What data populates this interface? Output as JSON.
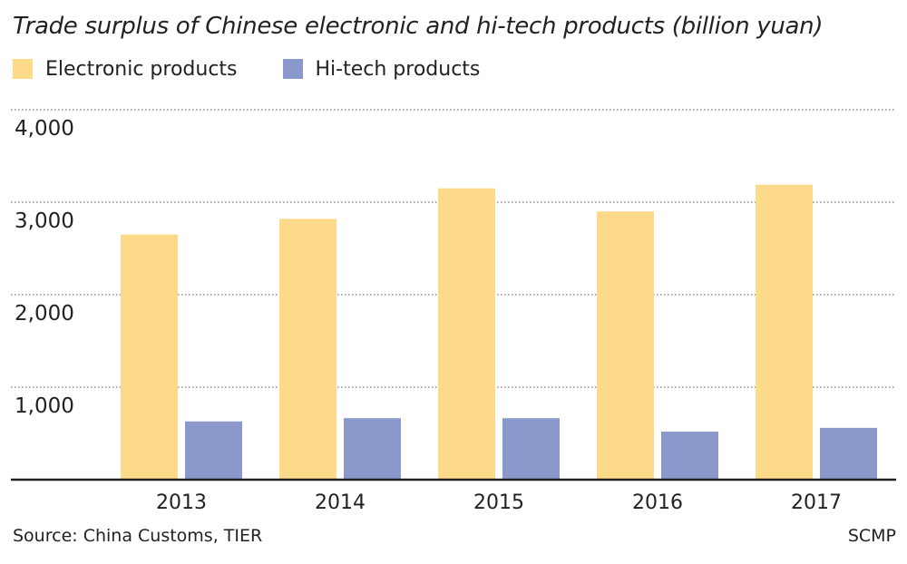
{
  "chart_data": {
    "type": "bar",
    "title": "Trade surplus of Chinese electronic and hi-tech products (billion yuan)",
    "categories": [
      "2013",
      "2014",
      "2015",
      "2016",
      "2017"
    ],
    "series": [
      {
        "name": "Electronic products",
        "color": "#fdd98a",
        "values": [
          2650,
          2820,
          3150,
          2900,
          3190
        ]
      },
      {
        "name": "Hi-tech products",
        "color": "#8a98cb",
        "values": [
          630,
          665,
          665,
          520,
          560
        ]
      }
    ],
    "y_ticks": [
      1000,
      2000,
      3000,
      4000
    ],
    "y_tick_labels": [
      "1,000",
      "2,000",
      "3,000",
      "4,000"
    ],
    "ylim": [
      0,
      4000
    ],
    "grid": true,
    "legend_position": "top-left"
  },
  "footer": {
    "source": "Source: China Customs, TIER",
    "credit": "SCMP"
  }
}
